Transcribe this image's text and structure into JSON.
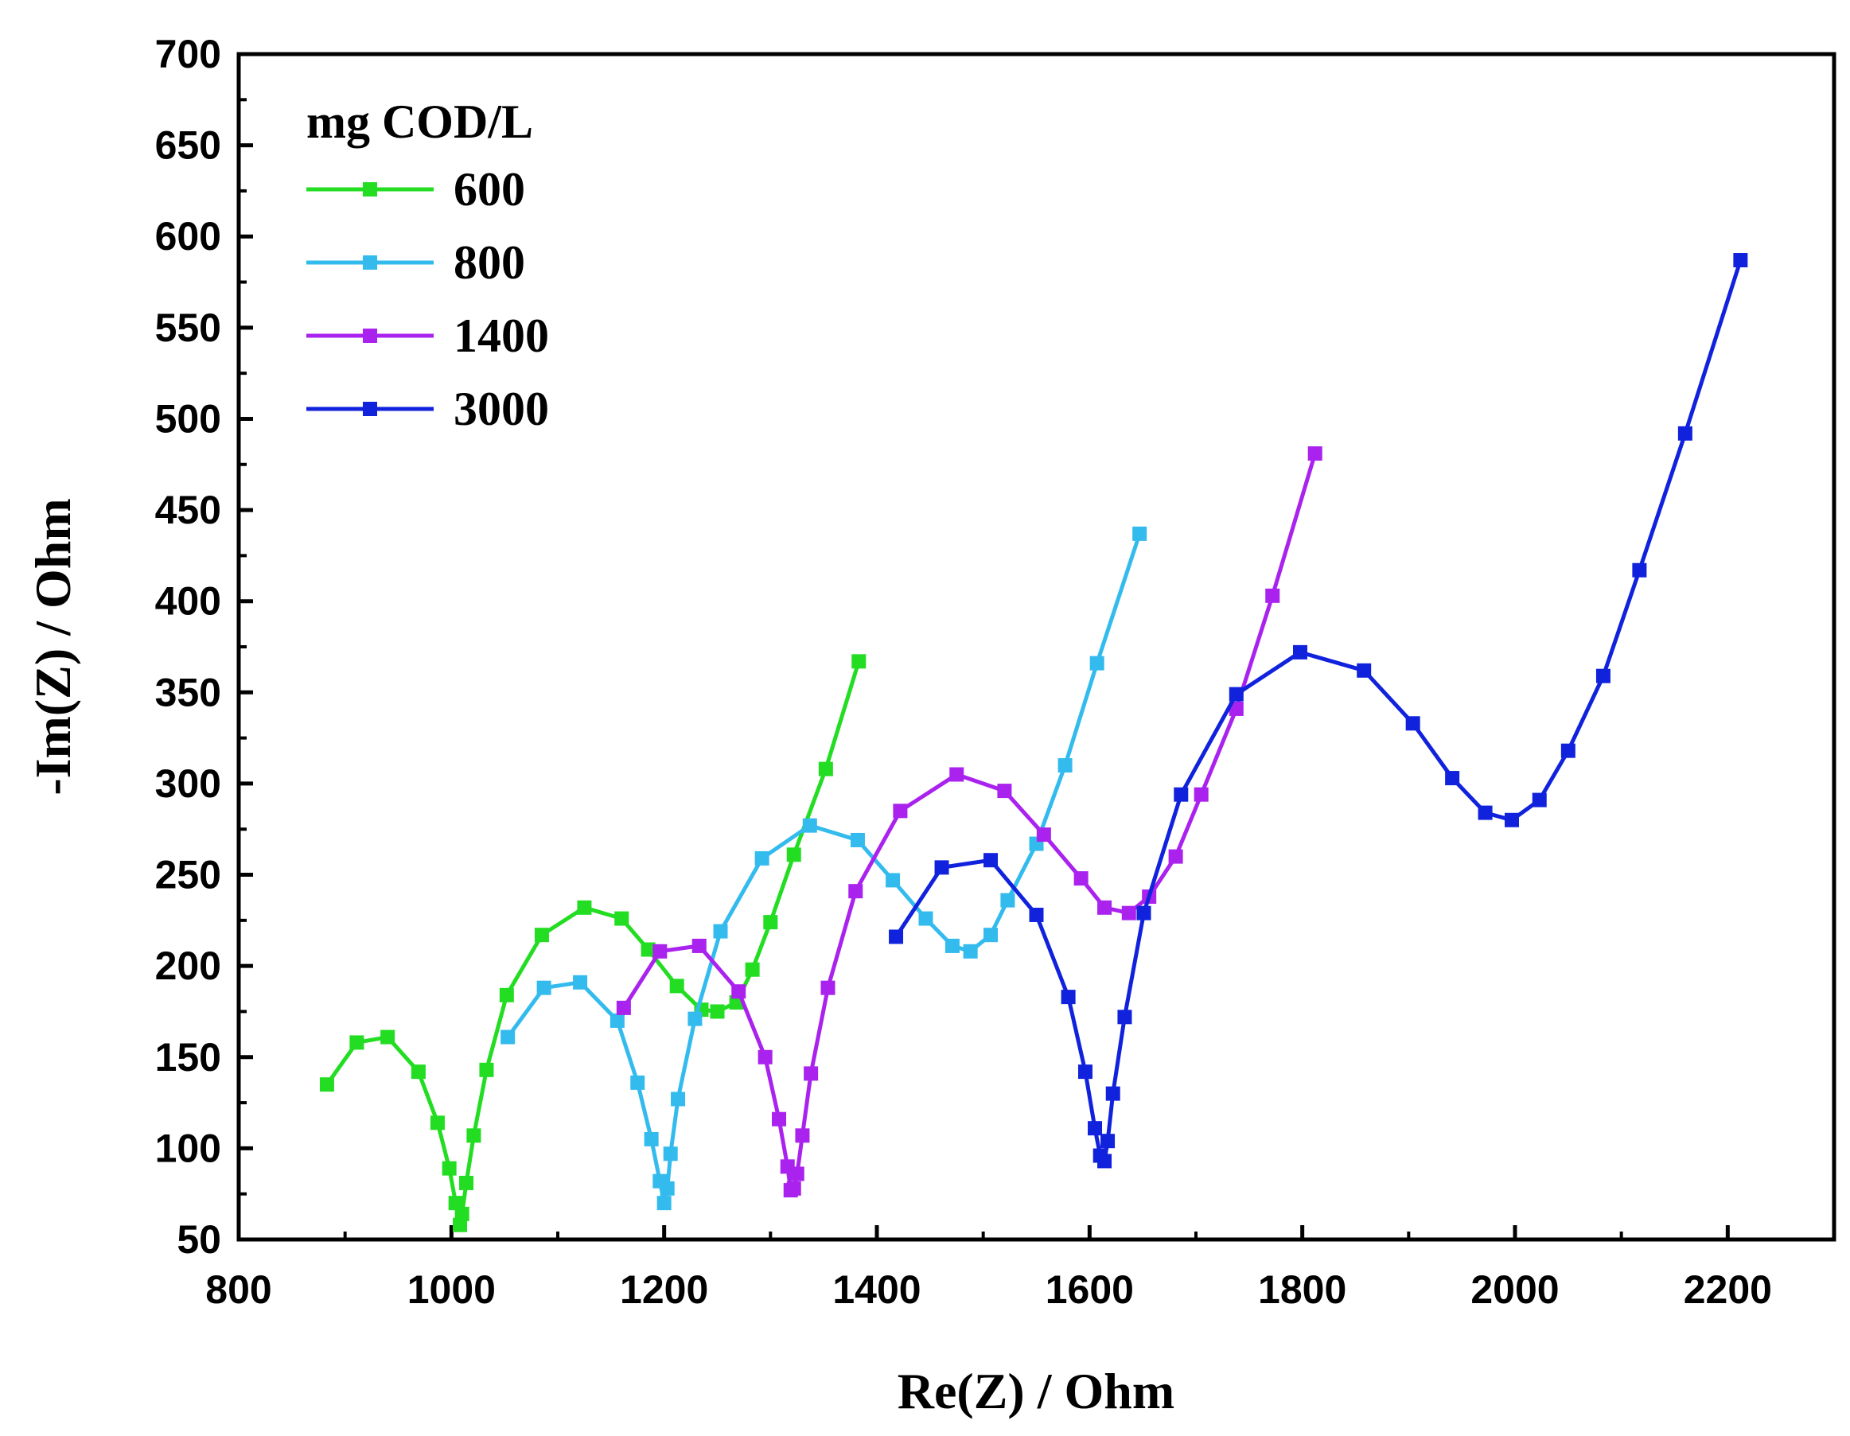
{
  "chart_data": {
    "type": "line",
    "xlabel": "Re(Z) / Ohm",
    "ylabel": "-Im(Z) / Ohm",
    "xlim": [
      800,
      2300
    ],
    "ylim": [
      50,
      700
    ],
    "xticks": [
      "800",
      "1000",
      "1200",
      "1400",
      "1600",
      "1800",
      "2000",
      "2200"
    ],
    "yticks": [
      "50",
      "100",
      "150",
      "200",
      "250",
      "300",
      "350",
      "400",
      "450",
      "500",
      "550",
      "600",
      "650",
      "700"
    ],
    "legend": {
      "title": "mg COD/L",
      "position": "top-left"
    },
    "grid": false,
    "series": [
      {
        "name": "600",
        "color": "#22dd22",
        "points": [
          [
            883,
            135
          ],
          [
            911,
            158
          ],
          [
            940,
            161
          ],
          [
            969,
            142
          ],
          [
            987,
            114
          ],
          [
            998,
            89
          ],
          [
            1004,
            70
          ],
          [
            1008,
            58
          ],
          [
            1010,
            64
          ],
          [
            1014,
            81
          ],
          [
            1021,
            107
          ],
          [
            1033,
            143
          ],
          [
            1052,
            184
          ],
          [
            1085,
            217
          ],
          [
            1125,
            232
          ],
          [
            1160,
            226
          ],
          [
            1185,
            209
          ],
          [
            1212,
            189
          ],
          [
            1235,
            176
          ],
          [
            1250,
            175
          ],
          [
            1268,
            180
          ],
          [
            1283,
            198
          ],
          [
            1300,
            224
          ],
          [
            1322,
            261
          ],
          [
            1352,
            308
          ],
          [
            1383,
            367
          ]
        ]
      },
      {
        "name": "800",
        "color": "#33bbee",
        "points": [
          [
            1053,
            161
          ],
          [
            1087,
            188
          ],
          [
            1121,
            191
          ],
          [
            1156,
            170
          ],
          [
            1175,
            136
          ],
          [
            1188,
            105
          ],
          [
            1196,
            82
          ],
          [
            1200,
            70
          ],
          [
            1203,
            78
          ],
          [
            1206,
            97
          ],
          [
            1213,
            127
          ],
          [
            1229,
            171
          ],
          [
            1253,
            219
          ],
          [
            1292,
            259
          ],
          [
            1337,
            277
          ],
          [
            1382,
            269
          ],
          [
            1415,
            247
          ],
          [
            1446,
            226
          ],
          [
            1471,
            211
          ],
          [
            1488,
            208
          ],
          [
            1507,
            217
          ],
          [
            1523,
            236
          ],
          [
            1550,
            267
          ],
          [
            1577,
            310
          ],
          [
            1607,
            366
          ],
          [
            1647,
            437
          ]
        ]
      },
      {
        "name": "1400",
        "color": "#aa22ee",
        "points": [
          [
            1162,
            177
          ],
          [
            1196,
            208
          ],
          [
            1233,
            211
          ],
          [
            1270,
            186
          ],
          [
            1295,
            150
          ],
          [
            1308,
            116
          ],
          [
            1316,
            90
          ],
          [
            1319,
            77
          ],
          [
            1322,
            78
          ],
          [
            1325,
            86
          ],
          [
            1330,
            107
          ],
          [
            1338,
            141
          ],
          [
            1354,
            188
          ],
          [
            1380,
            241
          ],
          [
            1422,
            285
          ],
          [
            1475,
            305
          ],
          [
            1520,
            296
          ],
          [
            1557,
            272
          ],
          [
            1592,
            248
          ],
          [
            1614,
            232
          ],
          [
            1637,
            229
          ],
          [
            1656,
            238
          ],
          [
            1681,
            260
          ],
          [
            1705,
            294
          ],
          [
            1738,
            341
          ],
          [
            1772,
            403
          ],
          [
            1812,
            481
          ]
        ]
      },
      {
        "name": "3000",
        "color": "#1122dd",
        "points": [
          [
            1418,
            216
          ],
          [
            1461,
            254
          ],
          [
            1507,
            258
          ],
          [
            1550,
            228
          ],
          [
            1580,
            183
          ],
          [
            1596,
            142
          ],
          [
            1605,
            111
          ],
          [
            1610,
            96
          ],
          [
            1614,
            93
          ],
          [
            1617,
            104
          ],
          [
            1622,
            130
          ],
          [
            1633,
            172
          ],
          [
            1651,
            229
          ],
          [
            1686,
            294
          ],
          [
            1738,
            349
          ],
          [
            1798,
            372
          ],
          [
            1858,
            362
          ],
          [
            1904,
            333
          ],
          [
            1941,
            303
          ],
          [
            1972,
            284
          ],
          [
            1997,
            280
          ],
          [
            2023,
            291
          ],
          [
            2050,
            318
          ],
          [
            2083,
            359
          ],
          [
            2117,
            417
          ],
          [
            2160,
            492
          ],
          [
            2212,
            587
          ]
        ]
      }
    ]
  }
}
